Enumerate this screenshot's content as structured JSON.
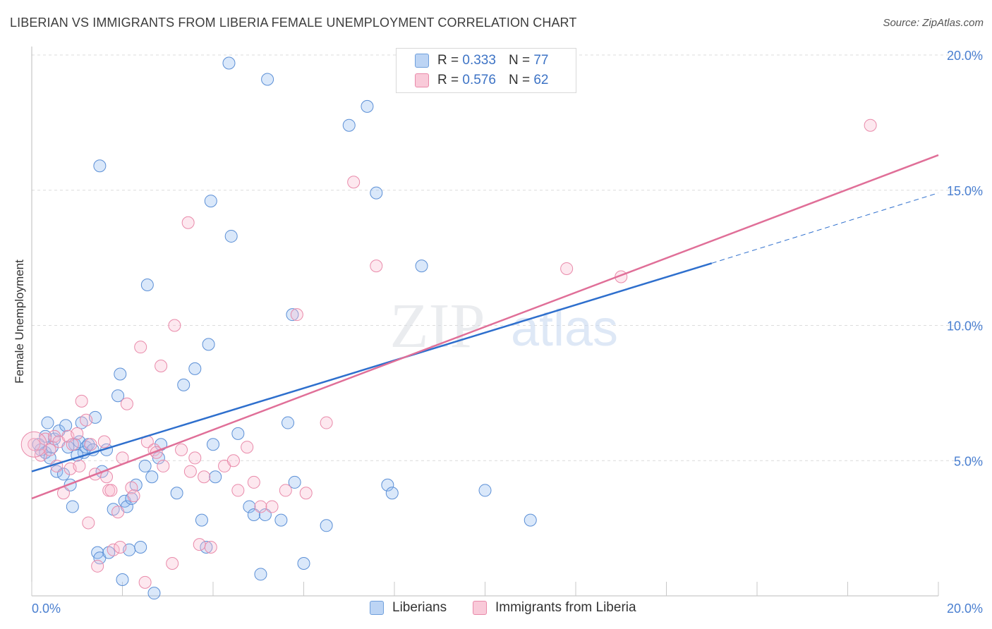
{
  "title": "LIBERIAN VS IMMIGRANTS FROM LIBERIA FEMALE UNEMPLOYMENT CORRELATION CHART",
  "source": "Source: ZipAtlas.com",
  "watermark": {
    "zip": "ZIP",
    "atlas": "atlas"
  },
  "legend": {
    "r_label": "R =",
    "n_label": "N =",
    "rows": [
      {
        "r": "0.333",
        "n": "77",
        "color": "#a9c8f0",
        "border": "#6f9fdc"
      },
      {
        "r": "0.576",
        "n": "62",
        "color": "#f8c0d2",
        "border": "#e98aaa"
      }
    ]
  },
  "bottom_legend": [
    {
      "label": "Liberians",
      "color": "#bcd4f4",
      "border": "#6f9fdc"
    },
    {
      "label": "Immigrants from Liberia",
      "color": "#f9cad9",
      "border": "#e98aaa"
    }
  ],
  "chart_data": {
    "type": "scatter",
    "title": "LIBERIAN VS IMMIGRANTS FROM LIBERIA FEMALE UNEMPLOYMENT CORRELATION CHART",
    "xlabel": "",
    "ylabel": "Female Unemployment",
    "xlim": [
      0,
      20
    ],
    "ylim": [
      0,
      20
    ],
    "x_tick_labels": [
      "0.0%",
      "20.0%"
    ],
    "y_ticks": [
      {
        "value": 5,
        "label": "5.0%"
      },
      {
        "value": 10,
        "label": "10.0%"
      },
      {
        "value": 15,
        "label": "15.0%"
      },
      {
        "value": 20,
        "label": "20.0%"
      }
    ],
    "grid": true,
    "series": [
      {
        "name": "Liberians",
        "color": "#5b8fd6",
        "fill": "rgba(150,190,240,0.35)",
        "trend": {
          "x0": 0,
          "y0": 4.6,
          "x1": 15.0,
          "y1": 12.3,
          "dash_to_x": 20.0,
          "dash_to_y": 14.9,
          "color": "#2e6fcd"
        },
        "points": [
          [
            0.2,
            5.4
          ],
          [
            0.3,
            5.3
          ],
          [
            0.35,
            6.4
          ],
          [
            0.4,
            5.1
          ],
          [
            0.45,
            5.5
          ],
          [
            0.5,
            5.8
          ],
          [
            0.55,
            4.6
          ],
          [
            0.6,
            6.1
          ],
          [
            0.7,
            4.5
          ],
          [
            0.75,
            6.3
          ],
          [
            0.85,
            4.1
          ],
          [
            0.9,
            3.3
          ],
          [
            0.95,
            5.6
          ],
          [
            1.05,
            5.7
          ],
          [
            1.1,
            6.4
          ],
          [
            1.15,
            5.3
          ],
          [
            1.2,
            5.5
          ],
          [
            1.25,
            5.6
          ],
          [
            1.35,
            5.4
          ],
          [
            1.4,
            6.6
          ],
          [
            1.45,
            1.6
          ],
          [
            1.5,
            1.4
          ],
          [
            1.55,
            4.6
          ],
          [
            1.65,
            5.4
          ],
          [
            1.7,
            1.6
          ],
          [
            1.8,
            3.2
          ],
          [
            1.9,
            7.4
          ],
          [
            1.95,
            8.2
          ],
          [
            2.0,
            0.6
          ],
          [
            2.05,
            3.5
          ],
          [
            2.1,
            3.3
          ],
          [
            2.15,
            1.7
          ],
          [
            2.2,
            3.6
          ],
          [
            2.3,
            4.1
          ],
          [
            2.4,
            1.8
          ],
          [
            2.55,
            11.5
          ],
          [
            2.65,
            4.4
          ],
          [
            2.7,
            0.1
          ],
          [
            2.8,
            5.1
          ],
          [
            2.85,
            5.6
          ],
          [
            3.35,
            7.8
          ],
          [
            3.6,
            8.4
          ],
          [
            3.75,
            2.8
          ],
          [
            3.85,
            1.8
          ],
          [
            3.9,
            9.3
          ],
          [
            3.95,
            14.6
          ],
          [
            4.0,
            5.6
          ],
          [
            4.05,
            4.4
          ],
          [
            4.35,
            19.7
          ],
          [
            4.4,
            13.3
          ],
          [
            4.55,
            6.0
          ],
          [
            4.8,
            3.3
          ],
          [
            5.05,
            0.8
          ],
          [
            5.15,
            3.0
          ],
          [
            5.2,
            19.1
          ],
          [
            5.5,
            2.8
          ],
          [
            5.65,
            6.4
          ],
          [
            5.75,
            10.4
          ],
          [
            5.8,
            4.2
          ],
          [
            6.0,
            1.2
          ],
          [
            7.0,
            17.4
          ],
          [
            7.4,
            18.1
          ],
          [
            7.6,
            14.9
          ],
          [
            7.85,
            4.1
          ],
          [
            7.95,
            3.8
          ],
          [
            8.6,
            12.2
          ],
          [
            10.0,
            3.9
          ],
          [
            11.0,
            2.8
          ],
          [
            1.5,
            15.9
          ],
          [
            0.3,
            5.9
          ],
          [
            0.8,
            5.5
          ],
          [
            1.0,
            5.2
          ],
          [
            2.5,
            4.8
          ],
          [
            3.2,
            3.8
          ],
          [
            0.15,
            5.6
          ],
          [
            6.5,
            2.6
          ],
          [
            4.9,
            3.0
          ]
        ]
      },
      {
        "name": "Immigrants from Liberia",
        "color": "#e98aaa",
        "fill": "rgba(248,190,210,0.35)",
        "trend": {
          "x0": 0,
          "y0": 3.6,
          "x1": 20.0,
          "y1": 16.3,
          "color": "#e06f98"
        },
        "points": [
          [
            0.05,
            5.6
          ],
          [
            0.2,
            5.2
          ],
          [
            0.3,
            5.8
          ],
          [
            0.4,
            5.4
          ],
          [
            0.5,
            5.9
          ],
          [
            0.55,
            4.8
          ],
          [
            0.6,
            5.7
          ],
          [
            0.7,
            3.8
          ],
          [
            0.8,
            5.9
          ],
          [
            0.85,
            4.7
          ],
          [
            0.9,
            5.6
          ],
          [
            1.0,
            6.0
          ],
          [
            1.05,
            4.8
          ],
          [
            1.1,
            7.2
          ],
          [
            1.2,
            6.5
          ],
          [
            1.25,
            2.7
          ],
          [
            1.3,
            5.6
          ],
          [
            1.4,
            4.5
          ],
          [
            1.45,
            1.1
          ],
          [
            1.6,
            5.7
          ],
          [
            1.65,
            4.4
          ],
          [
            1.7,
            3.9
          ],
          [
            1.75,
            3.9
          ],
          [
            1.8,
            1.7
          ],
          [
            1.9,
            3.1
          ],
          [
            1.95,
            1.8
          ],
          [
            2.0,
            5.1
          ],
          [
            2.1,
            7.1
          ],
          [
            2.2,
            4.0
          ],
          [
            2.25,
            3.7
          ],
          [
            2.4,
            9.2
          ],
          [
            2.5,
            0.5
          ],
          [
            2.55,
            5.7
          ],
          [
            2.7,
            5.4
          ],
          [
            2.75,
            5.3
          ],
          [
            2.85,
            8.5
          ],
          [
            2.9,
            4.8
          ],
          [
            3.1,
            1.2
          ],
          [
            3.15,
            10.0
          ],
          [
            3.3,
            5.4
          ],
          [
            3.45,
            13.8
          ],
          [
            3.5,
            4.6
          ],
          [
            3.6,
            5.1
          ],
          [
            3.7,
            1.9
          ],
          [
            3.8,
            4.4
          ],
          [
            3.95,
            1.8
          ],
          [
            4.25,
            4.8
          ],
          [
            4.45,
            5.0
          ],
          [
            4.55,
            3.9
          ],
          [
            4.75,
            5.5
          ],
          [
            4.9,
            4.2
          ],
          [
            5.05,
            3.3
          ],
          [
            5.3,
            3.3
          ],
          [
            5.6,
            3.9
          ],
          [
            5.85,
            10.4
          ],
          [
            6.05,
            3.8
          ],
          [
            6.5,
            6.4
          ],
          [
            7.1,
            15.3
          ],
          [
            7.6,
            12.2
          ],
          [
            11.8,
            12.1
          ],
          [
            13.0,
            11.8
          ],
          [
            18.5,
            17.4
          ]
        ]
      }
    ]
  }
}
